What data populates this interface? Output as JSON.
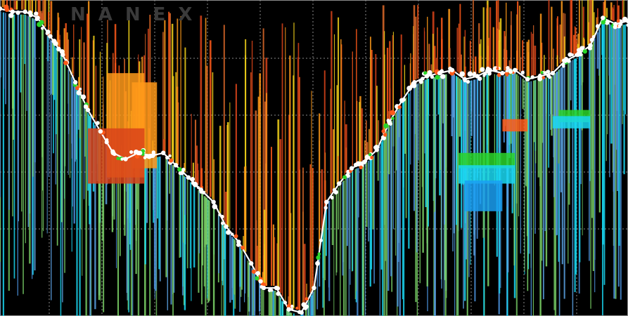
{
  "watermark": "NANEX",
  "chart_data": {
    "type": "line",
    "grid": true,
    "x": [
      0,
      2,
      4,
      6,
      8,
      10,
      12,
      14,
      16,
      18,
      20,
      22,
      24,
      26,
      28,
      30,
      32,
      34,
      36,
      38,
      40,
      42,
      44,
      46,
      48,
      50,
      52,
      54,
      56,
      58,
      60,
      62,
      64,
      66,
      68,
      70,
      72,
      74,
      76,
      78,
      80,
      82,
      84,
      86,
      88,
      90,
      92,
      94,
      96,
      98,
      100
    ],
    "series": [
      {
        "values": [
          99,
          98,
          98,
          96,
          90,
          84,
          75,
          66,
          59,
          52,
          50,
          52,
          51,
          52,
          48,
          44,
          40,
          36,
          28,
          23,
          16,
          8,
          8,
          1,
          0,
          8,
          36,
          42,
          47,
          49,
          53,
          62,
          69,
          75,
          77,
          78,
          79,
          76,
          77,
          79,
          78,
          79,
          76,
          77,
          78,
          82,
          84,
          87,
          96,
          94,
          95
        ]
      }
    ],
    "colors": {
      "bid_side": "#4a8fd8",
      "ask_side": "#ff5a1a",
      "trades": "#ffffff",
      "orange": "#ff9a1a",
      "yellow": "#f2d21a",
      "green": "#2ad52a",
      "cyan": "#1ad8f2",
      "lime": "#7fd86a"
    }
  }
}
